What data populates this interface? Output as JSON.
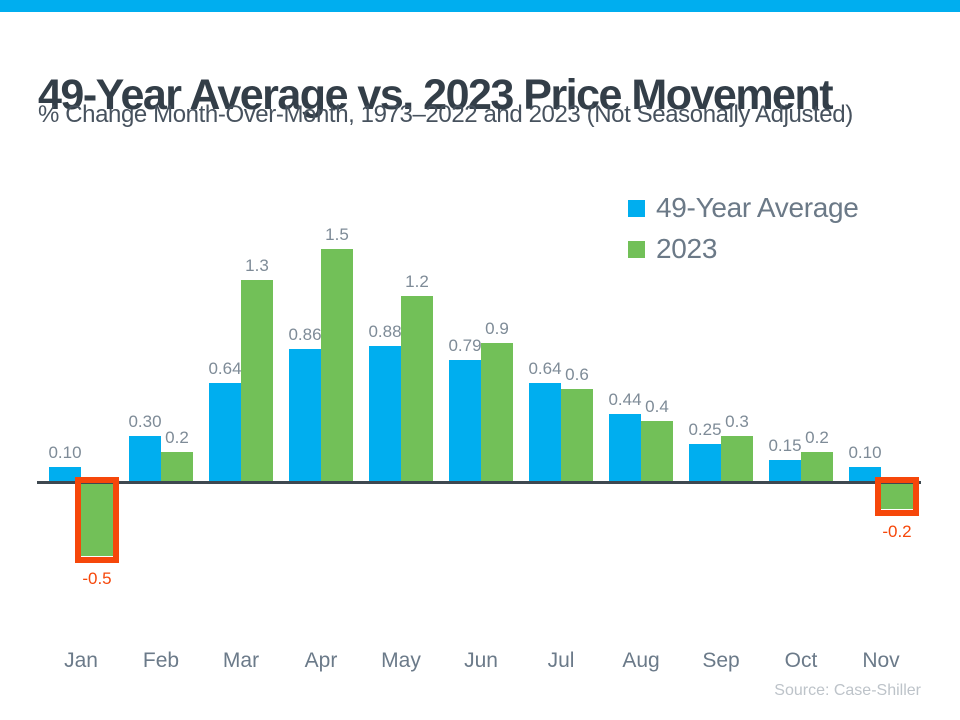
{
  "header": {
    "title": "49-Year Average vs. 2023 Price Movement",
    "subtitle": "% Change Month-Over-Month, 1973–2022 and 2023 (Not Seasonally Adjusted)"
  },
  "footer": {
    "source": "Source: Case-Shiller"
  },
  "colors": {
    "top_bar": "#00AEEF",
    "series_blue": "#00AEEF",
    "series_green": "#72C058",
    "highlight_red": "#F6470A",
    "axis": "#3E4850",
    "title_text": "#333E48",
    "label_gray": "#7E8B97"
  },
  "legend": {
    "items": [
      {
        "label": "49-Year Average",
        "color": "#00AEEF"
      },
      {
        "label": "2023",
        "color": "#72C058"
      }
    ]
  },
  "chart_data": {
    "type": "bar",
    "title": "49-Year Average vs. 2023 Price Movement",
    "subtitle": "% Change Month-Over-Month, 1973–2022 and 2023 (Not Seasonally Adjusted)",
    "categories": [
      "Jan",
      "Feb",
      "Mar",
      "Apr",
      "May",
      "Jun",
      "Jul",
      "Aug",
      "Sep",
      "Oct",
      "Nov"
    ],
    "series": [
      {
        "name": "49-Year Average",
        "color": "#00AEEF",
        "values": [
          0.1,
          0.3,
          0.64,
          0.86,
          0.88,
          0.79,
          0.64,
          0.44,
          0.25,
          0.15,
          0.1
        ],
        "labels": [
          "0.10",
          "0.30",
          "0.64",
          "0.86",
          "0.88",
          "0.79",
          "0.64",
          "0.44",
          "0.25",
          "0.15",
          "0.10"
        ]
      },
      {
        "name": "2023",
        "color": "#72C058",
        "values": [
          -0.5,
          0.2,
          1.3,
          1.5,
          1.2,
          0.9,
          0.6,
          0.4,
          0.3,
          0.2,
          -0.2
        ],
        "labels": [
          "-0.5",
          "0.2",
          "1.3",
          "1.5",
          "1.2",
          "0.9",
          "0.6",
          "0.4",
          "0.3",
          "0.2",
          "-0.2"
        ]
      }
    ],
    "value_labels": true,
    "highlight": {
      "months": [
        "Jan",
        "Nov"
      ],
      "color": "#F6470A",
      "style": "box-around-negative-2023-bars"
    },
    "ylim": [
      -0.6,
      1.6
    ],
    "grid": false,
    "y_axis_shown": false,
    "legend_position": "top-right",
    "source": "Source: Case-Shiller"
  }
}
